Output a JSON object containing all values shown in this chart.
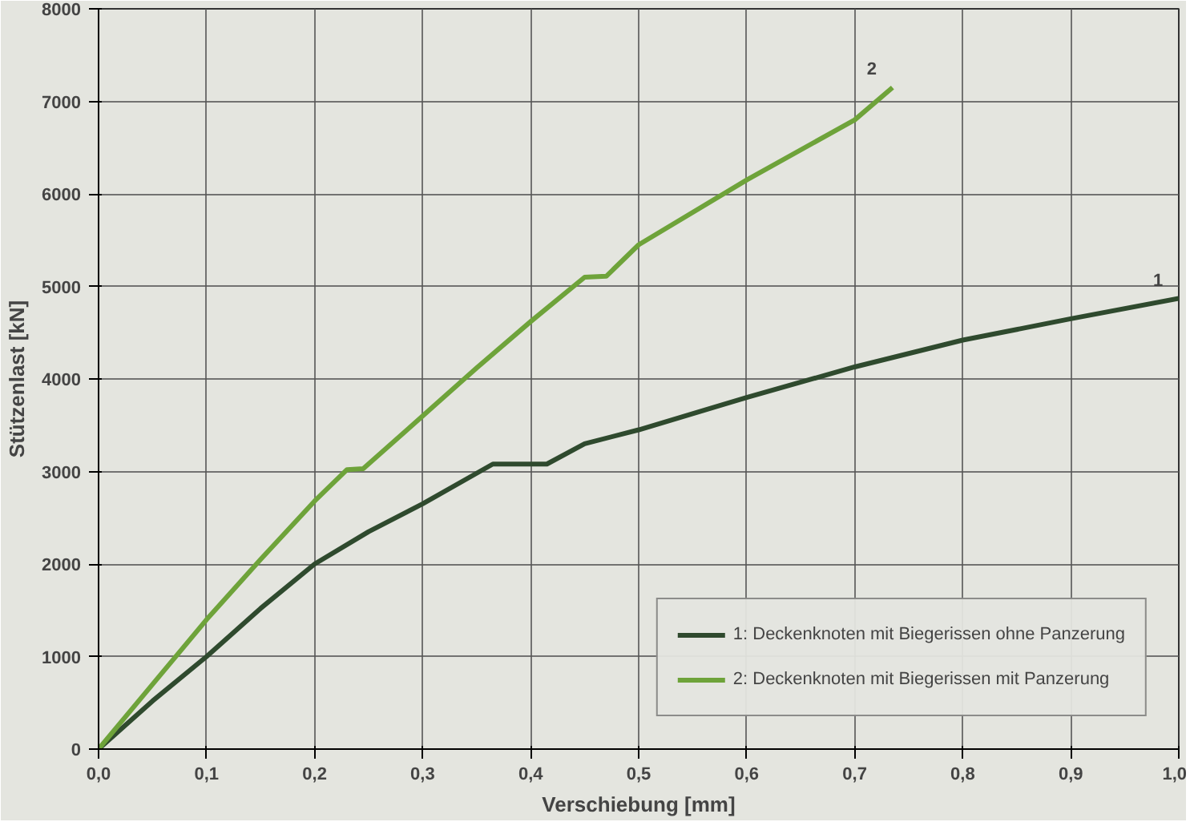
{
  "chart_data": {
    "type": "line",
    "xlabel": "Verschiebung [mm]",
    "ylabel": "Stützenlast [kN]",
    "series": [
      {
        "name": "1: Deckenknoten mit Biegerissen ohne Panzerung",
        "color": "#2f4a2e",
        "x": [
          0,
          0.05,
          0.1,
          0.15,
          0.2,
          0.25,
          0.3,
          0.365,
          0.415,
          0.45,
          0.5,
          0.6,
          0.7,
          0.8,
          0.9,
          1.0
        ],
        "values": [
          0,
          520,
          1000,
          1520,
          2000,
          2350,
          2650,
          3080,
          3080,
          3300,
          3450,
          3800,
          4130,
          4420,
          4650,
          4870
        ]
      },
      {
        "name": "2: Deckenknoten mit Biegerissen mit Panzerung",
        "color": "#6ea33a",
        "x": [
          0,
          0.05,
          0.1,
          0.15,
          0.2,
          0.23,
          0.245,
          0.3,
          0.35,
          0.4,
          0.45,
          0.47,
          0.5,
          0.6,
          0.7,
          0.735
        ],
        "values": [
          0,
          700,
          1400,
          2050,
          2680,
          3020,
          3030,
          3600,
          4120,
          4620,
          5100,
          5110,
          5450,
          6150,
          6800,
          7150
        ]
      }
    ],
    "annotations": [
      {
        "text": "1",
        "x": 1.0,
        "y": 4870
      },
      {
        "text": "2",
        "x": 0.735,
        "y": 7150
      }
    ],
    "xlim": [
      0,
      1.0
    ],
    "ylim": [
      0,
      8000
    ],
    "xticks": [
      {
        "value": 0,
        "label": "0,0"
      },
      {
        "value": 0.1,
        "label": "0,1"
      },
      {
        "value": 0.2,
        "label": "0,2"
      },
      {
        "value": 0.3,
        "label": "0,3"
      },
      {
        "value": 0.4,
        "label": "0,4"
      },
      {
        "value": 0.5,
        "label": "0,5"
      },
      {
        "value": 0.6,
        "label": "0,6"
      },
      {
        "value": 0.7,
        "label": "0,7"
      },
      {
        "value": 0.8,
        "label": "0,8"
      },
      {
        "value": 0.9,
        "label": "0,9"
      },
      {
        "value": 1.0,
        "label": "1,0"
      }
    ],
    "yticks": [
      0,
      1000,
      2000,
      3000,
      4000,
      5000,
      6000,
      7000,
      8000
    ],
    "grid": true,
    "legend": "bottom right",
    "marker": "none",
    "line_style": "solid"
  }
}
